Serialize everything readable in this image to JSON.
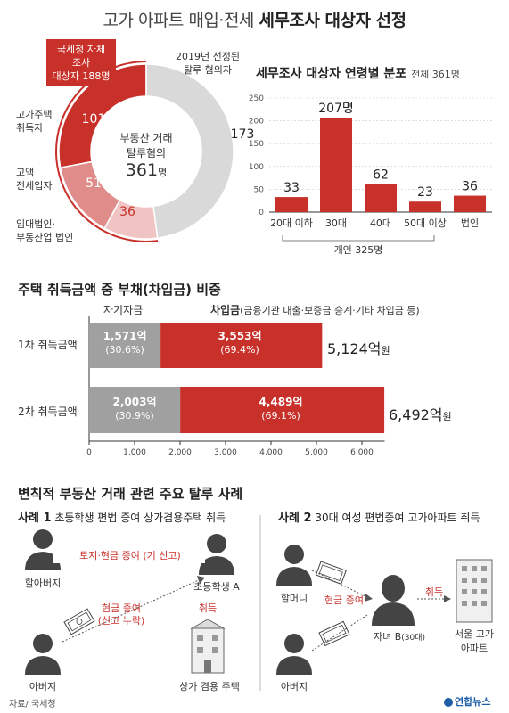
{
  "title_part1": "고가 아파트 매입·전세",
  "title_part2": "세무조사 대상자 선정",
  "donut": {
    "box_line1": "국세청 자체 조사",
    "box_line2": "대상자 188명",
    "label_2019_l1": "2019년 선정된",
    "label_2019_l2": "탈루 혐의자",
    "label_high_l1": "고가주택",
    "label_high_l2": "취득자",
    "label_jeonse_l1": "고액",
    "label_jeonse_l2": "전세입자",
    "label_corp_l1": "임대법인·",
    "label_corp_l2": "부동산업 법인",
    "center_l1": "부동산 거래",
    "center_l2": "탈루혐의",
    "center_num": "361",
    "center_unit": "명",
    "v101": "101",
    "v51": "51",
    "v36": "36",
    "v173": "173"
  },
  "age": {
    "title": "세무조사 대상자 연령별 분포",
    "total": "전체 361명",
    "yticks": [
      "0",
      "50",
      "100",
      "150",
      "200",
      "250"
    ],
    "group_label": "개인 325명"
  },
  "debt": {
    "title": "주택 취득금액 중 부채(차입금) 비중",
    "legend_own": "자기자금",
    "legend_loan_bold": "차입금",
    "legend_loan_rest": "(금융기관 대출·보증금 승계·기타 차입금 등)",
    "row1_label": "1차 취득금액",
    "row2_label": "2차 취득금액",
    "r1_own": "1,571억",
    "r1_own_pct": "(30.6%)",
    "r1_loan": "3,553억",
    "r1_loan_pct": "(69.4%)",
    "r1_total": "5,124억",
    "r2_own": "2,003억",
    "r2_own_pct": "(30.9%)",
    "r2_loan": "4,489억",
    "r2_loan_pct": "(69.1%)",
    "r2_total": "6,492억",
    "won": "원",
    "xticks": [
      "0",
      "1,000",
      "2,000",
      "3,000",
      "4,000",
      "5,000",
      "6,000"
    ]
  },
  "cases": {
    "title": "변칙적 부동산 거래 관련 주요 탈루 사례",
    "c1_num": "사례 1",
    "c1_desc": "초등학생 편법 증여 상가겸용주택 취득",
    "c1_gift_note": "토지·현금 증여 (기 신고)",
    "c1_grandfather": "할아버지",
    "c1_child": "초등학생 A",
    "c1_cash_l1": "현금 증여",
    "c1_cash_l2": "(신고 누락)",
    "c1_acquire": "취득",
    "c1_father": "아버지",
    "c1_building": "상가 겸용 주택",
    "c2_num": "사례 2",
    "c2_desc": "30대 여성 편법증여 고가아파트 취득",
    "c2_grandmother": "할머니",
    "c2_cash": "현금 증여",
    "c2_acquire": "취득",
    "c2_child": "자녀 B",
    "c2_child_age": "(30대)",
    "c2_building_l1": "서울 고가",
    "c2_building_l2": "아파트",
    "c2_father": "아버지"
  },
  "footer": {
    "source": "자료/ 국세청",
    "logo": "연합뉴스"
  },
  "colors": {
    "red": "#c8302a",
    "gray": "#a0a0a0",
    "lightgray": "#d9d9d9",
    "pink": "#e08c8a"
  },
  "chart_data": [
    {
      "type": "pie",
      "title": "",
      "categories": [
        "고가주택 취득자",
        "고액 전세입자",
        "임대법인·부동산업 법인",
        "2019년 선정된 탈루 혐의자"
      ],
      "values": [
        101,
        51,
        36,
        173
      ],
      "center_total": 361
    },
    {
      "type": "bar",
      "title": "세무조사 대상자 연령별 분포",
      "categories": [
        "20대 이하",
        "30대",
        "40대",
        "50대 이상",
        "법인"
      ],
      "values": [
        33,
        207,
        62,
        23,
        36
      ],
      "value_labels": [
        "33",
        "207명",
        "62",
        "23",
        "36"
      ],
      "ylim": [
        0,
        250
      ]
    },
    {
      "type": "bar",
      "title": "주택 취득금액 중 부채(차입금) 비중",
      "orientation": "horizontal",
      "stacked": true,
      "categories": [
        "1차 취득금액",
        "2차 취득금액"
      ],
      "series": [
        {
          "name": "자기자금",
          "values": [
            1571,
            2003
          ]
        },
        {
          "name": "차입금",
          "values": [
            3553,
            4489
          ]
        }
      ],
      "xlim": [
        0,
        6500
      ]
    }
  ]
}
